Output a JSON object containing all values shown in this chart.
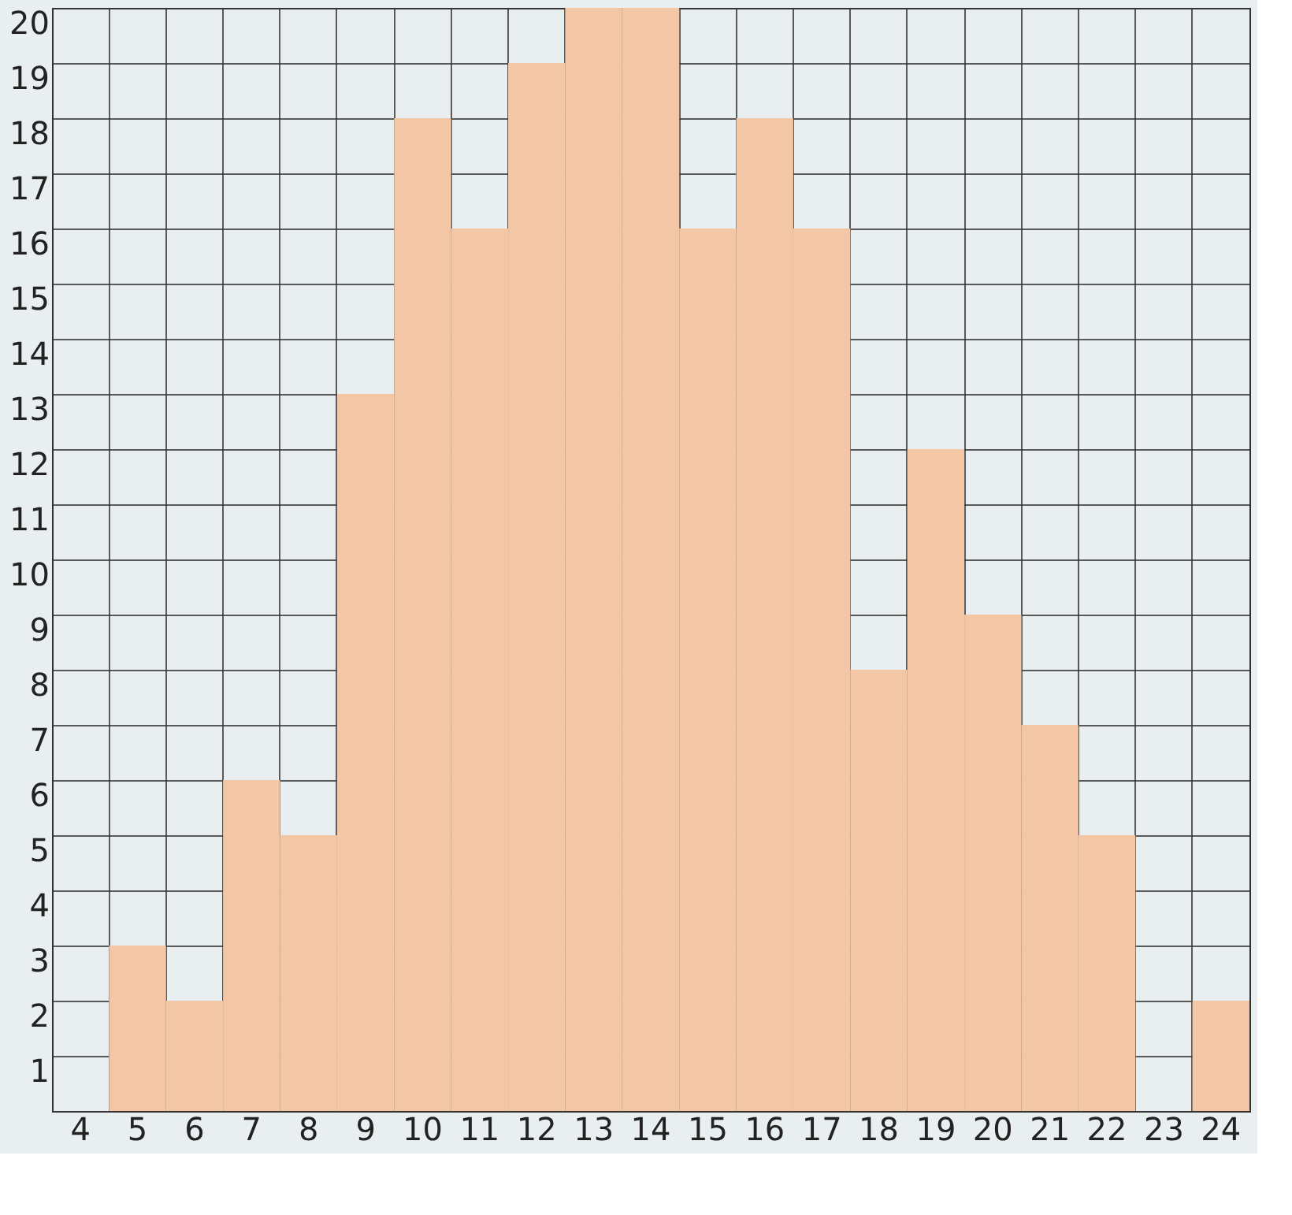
{
  "chart_data": {
    "type": "bar",
    "categories": [
      "4",
      "5",
      "6",
      "7",
      "8",
      "9",
      "10",
      "11",
      "12",
      "13",
      "14",
      "15",
      "16",
      "17",
      "18",
      "19",
      "20",
      "21",
      "22",
      "23",
      "24"
    ],
    "values": [
      0,
      3,
      2,
      6,
      5,
      13,
      18,
      16,
      19,
      20,
      20,
      16,
      18,
      16,
      8,
      12,
      9,
      7,
      5,
      0,
      2
    ],
    "color": "#f3c6a5",
    "ylim": [
      0,
      20
    ],
    "yticks": [
      1,
      2,
      3,
      4,
      5,
      6,
      7,
      8,
      9,
      10,
      11,
      12,
      13,
      14,
      15,
      16,
      17,
      18,
      19,
      20
    ],
    "grid": true
  }
}
